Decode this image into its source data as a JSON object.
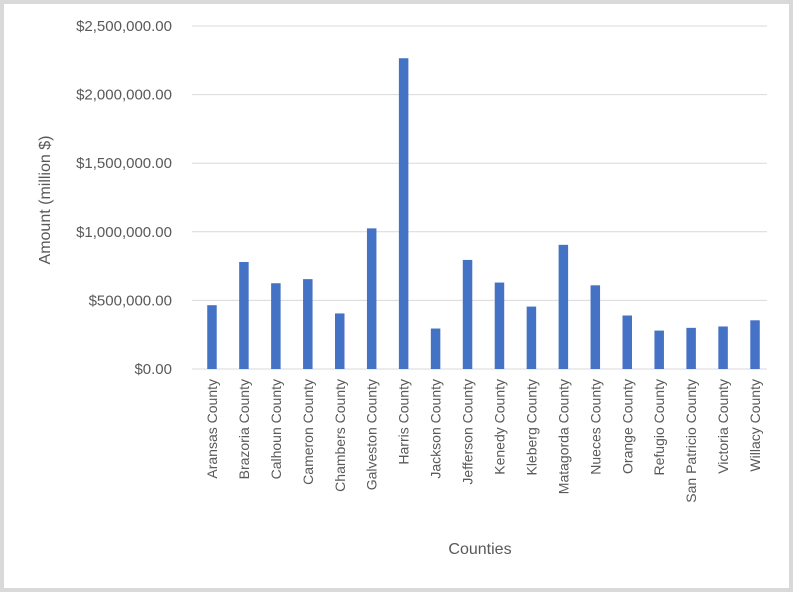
{
  "chart_data": {
    "type": "bar",
    "title": "",
    "xlabel": "Counties",
    "ylabel": "Amount (million $)",
    "ylim": [
      0,
      2500000
    ],
    "yticks": [
      0,
      500000,
      1000000,
      1500000,
      2000000,
      2500000
    ],
    "ytick_labels": [
      "$0.00",
      "$500,000.00",
      "$1,000,000.00",
      "$1,500,000.00",
      "$2,000,000.00",
      "$2,500,000.00"
    ],
    "grid": true,
    "legend": "none",
    "bar_color": "#4472c4",
    "categories": [
      "Aransas County",
      "Brazoria County",
      "Calhoun County",
      "Cameron County",
      "Chambers County",
      "Galveston County",
      "Harris County",
      "Jackson County",
      "Jefferson County",
      "Kenedy County",
      "Kleberg County",
      "Matagorda County",
      "Nueces County",
      "Orange County",
      "Refugio County",
      "San Patricio County",
      "Victoria County",
      "Willacy County"
    ],
    "values": [
      465000,
      780000,
      625000,
      655000,
      405000,
      1025000,
      2265000,
      295000,
      795000,
      630000,
      455000,
      905000,
      610000,
      390000,
      280000,
      300000,
      310000,
      355000
    ]
  }
}
